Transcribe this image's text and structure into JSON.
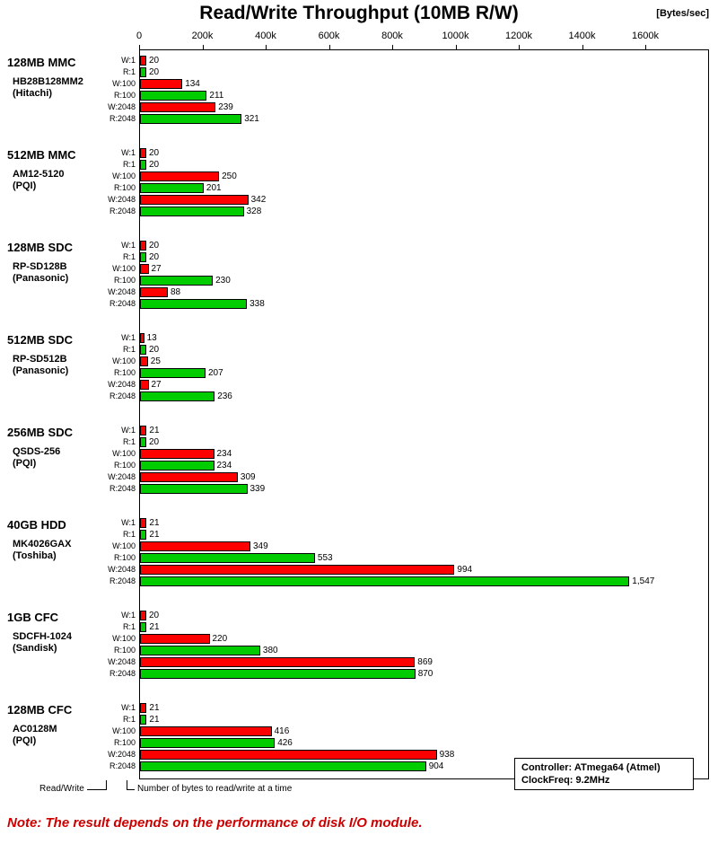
{
  "chart_data": {
    "type": "bar",
    "orientation": "horizontal",
    "title": "Read/Write Throughput (10MB R/W)",
    "unit_display": "[Bytes/sec]",
    "value_unit": "Bytes/sec",
    "value_scale": "bar values are in thousands (k) of Bytes/sec",
    "x_axis": {
      "min_k": 0,
      "max_k": 1600,
      "ticks": [
        "0",
        "200k",
        "400k",
        "600k",
        "800k",
        "1000k",
        "1200k",
        "1400k",
        "1600k"
      ]
    },
    "row_labels": [
      "W:1",
      "R:1",
      "W:100",
      "R:100",
      "W:2048",
      "R:2048"
    ],
    "colors": {
      "write": "#ff0000",
      "read": "#00cc00",
      "bar_border": "#000000"
    },
    "legend_position": "bottom-left",
    "grid": false,
    "groups": [
      {
        "name": "128MB MMC",
        "model": "HB28B128MM2",
        "maker": "(Hitachi)",
        "values": [
          20,
          20,
          134,
          211,
          239,
          321
        ]
      },
      {
        "name": "512MB MMC",
        "model": "AM12-5120",
        "maker": "(PQI)",
        "values": [
          20,
          20,
          250,
          201,
          342,
          328
        ]
      },
      {
        "name": "128MB SDC",
        "model": "RP-SD128B",
        "maker": "(Panasonic)",
        "values": [
          20,
          20,
          27,
          230,
          88,
          338
        ]
      },
      {
        "name": "512MB SDC",
        "model": "RP-SD512B",
        "maker": "(Panasonic)",
        "values": [
          13,
          20,
          25,
          207,
          27,
          236
        ]
      },
      {
        "name": "256MB SDC",
        "model": "QSDS-256",
        "maker": "(PQI)",
        "values": [
          21,
          20,
          234,
          234,
          309,
          339
        ]
      },
      {
        "name": "40GB HDD",
        "model": "MK4026GAX",
        "maker": "(Toshiba)",
        "values": [
          21,
          21,
          349,
          553,
          994,
          1547
        ]
      },
      {
        "name": "1GB CFC",
        "model": "SDCFH-1024",
        "maker": "(Sandisk)",
        "values": [
          20,
          21,
          220,
          380,
          869,
          870
        ]
      },
      {
        "name": "128MB CFC",
        "model": "AC0128M",
        "maker": "(PQI)",
        "values": [
          21,
          21,
          416,
          426,
          938,
          904
        ]
      }
    ]
  },
  "legend": {
    "read_write": "Read/Write",
    "bytes_note": "Number of bytes to read/write at a time"
  },
  "info_box": {
    "line1": "Controller: ATmega64 (Atmel)",
    "line2": "ClockFreq: 9.2MHz"
  },
  "note": "Note: The result depends on the performance of disk I/O module."
}
